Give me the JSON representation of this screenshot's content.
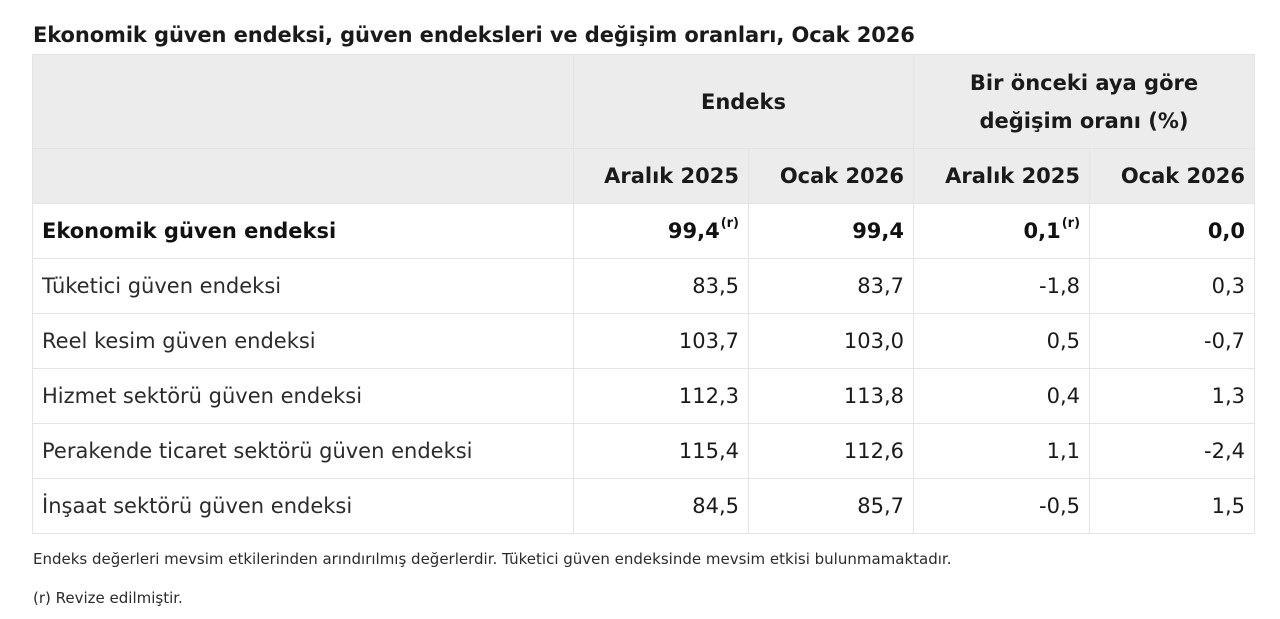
{
  "title": "Ekonomik güven endeksi, güven endeksleri ve değişim oranları, Ocak 2026",
  "table": {
    "group_headers": {
      "index": "Endeks",
      "change": "Bir önceki aya göre değişim oranı (%)"
    },
    "sub_headers": [
      "Aralık 2025",
      "Ocak 2026",
      "Aralık 2025",
      "Ocak 2026"
    ],
    "revised_mark": "(r)",
    "rows": [
      {
        "label": "Ekonomik güven endeksi",
        "idx_dec": "99,4",
        "idx_dec_revised": true,
        "idx_jan": "99,4",
        "chg_dec": "0,1",
        "chg_dec_revised": true,
        "chg_jan": "0,0",
        "bold": true
      },
      {
        "label": "Tüketici güven endeksi",
        "idx_dec": "83,5",
        "idx_jan": "83,7",
        "chg_dec": "-1,8",
        "chg_jan": "0,3"
      },
      {
        "label": "Reel kesim güven endeksi",
        "idx_dec": "103,7",
        "idx_jan": "103,0",
        "chg_dec": "0,5",
        "chg_jan": "-0,7"
      },
      {
        "label": "Hizmet sektörü güven endeksi",
        "idx_dec": "112,3",
        "idx_jan": "113,8",
        "chg_dec": "0,4",
        "chg_jan": "1,3"
      },
      {
        "label": "Perakende ticaret sektörü güven endeksi",
        "idx_dec": "115,4",
        "idx_jan": "112,6",
        "chg_dec": "1,1",
        "chg_jan": "-2,4"
      },
      {
        "label": "İnşaat sektörü güven endeksi",
        "idx_dec": "84,5",
        "idx_jan": "85,7",
        "chg_dec": "-0,5",
        "chg_jan": "1,5"
      }
    ]
  },
  "notes": {
    "seasonal": "Endeks değerleri mevsim etkilerinden arındırılmış değerlerdir. Tüketici güven endeksinde mevsim etkisi bulunmamaktadır.",
    "revised": "(r) Revize edilmiştir."
  }
}
